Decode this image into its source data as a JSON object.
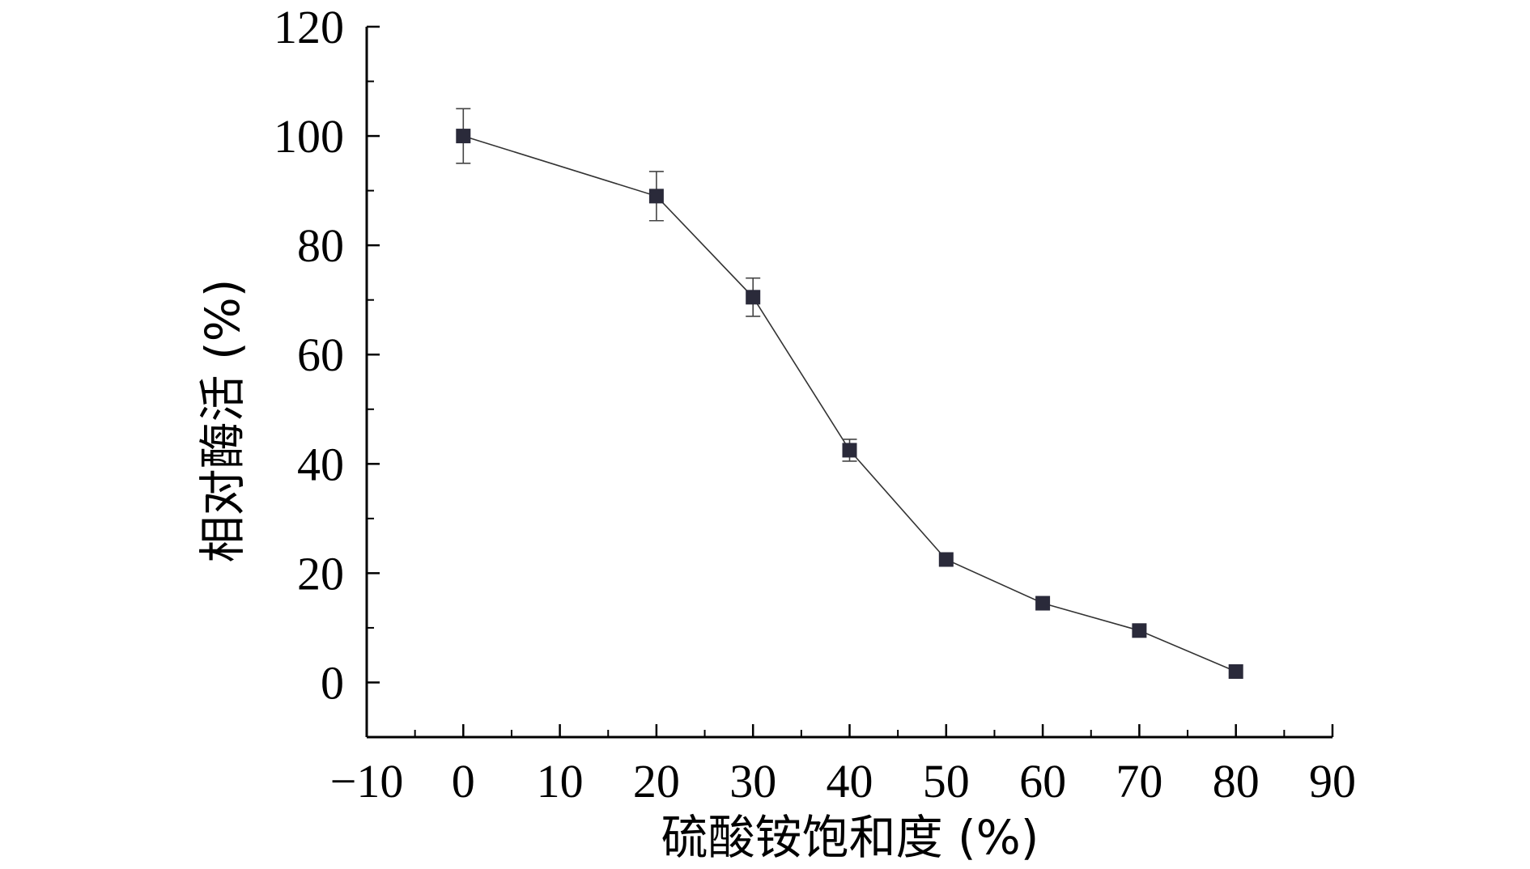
{
  "chart_data": {
    "type": "line",
    "title": "",
    "xlabel": "硫酸铵饱和度 (%)",
    "ylabel": "相对酶活 (%)",
    "xlim": [
      -10,
      90
    ],
    "ylim": [
      -10,
      120
    ],
    "x_ticks": [
      -10,
      0,
      10,
      20,
      30,
      40,
      50,
      60,
      70,
      80,
      90
    ],
    "x_tick_labels": [
      "−10",
      "0",
      "10",
      "20",
      "30",
      "40",
      "50",
      "60",
      "70",
      "80",
      "90"
    ],
    "y_ticks": [
      0,
      20,
      40,
      60,
      80,
      100,
      120
    ],
    "y_tick_labels": [
      "0",
      "20",
      "40",
      "60",
      "80",
      "100",
      "120"
    ],
    "grid": false,
    "legend": false,
    "marker": "square",
    "series": [
      {
        "x": [
          0,
          20,
          30,
          40,
          50,
          60,
          70,
          80
        ],
        "y": [
          100,
          89,
          70.5,
          42.5,
          22.5,
          14.5,
          9.5,
          2
        ],
        "error": [
          5,
          4.5,
          3.5,
          2,
          0,
          0,
          0,
          0
        ]
      }
    ],
    "colors": {
      "marker": "#2a2a3a",
      "line": "#333333",
      "axis": "#000000"
    }
  }
}
